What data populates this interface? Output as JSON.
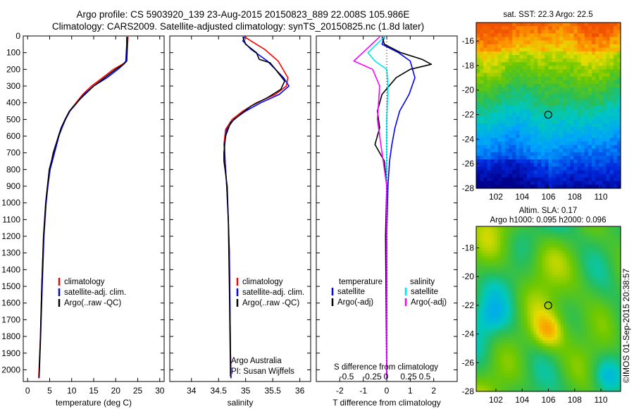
{
  "header": {
    "line1": "Argo profile: CS 5903920_139 23-Aug-2015 20150823_889 22.008S 105.986E",
    "line2": "Climatology: CARS2009. Satellite-adjusted climatology: synTS_20150825.nc (1.8d later)"
  },
  "colors": {
    "climatology": "#ff0000",
    "satellite": "#0000ff",
    "argo": "#000000",
    "satellite_salinity": "#00e5ee",
    "argo_salinity": "#ff00ff"
  },
  "credit": "©IMOS 01-Sep-2015 20:38:57",
  "chart_data": [
    {
      "id": "temperature",
      "type": "line",
      "xlabel": "temperature (deg C)",
      "ylabel": "",
      "xlim": [
        -1,
        31
      ],
      "ylim": [
        2070,
        0
      ],
      "xticks": [
        0,
        5,
        10,
        15,
        20,
        25,
        30
      ],
      "yticks": [
        0,
        100,
        200,
        300,
        400,
        500,
        600,
        700,
        800,
        900,
        1000,
        1100,
        1200,
        1300,
        1400,
        1500,
        1600,
        1700,
        1800,
        1900,
        2000
      ],
      "legend": [
        "climatology",
        "satellite-adj. clim.",
        "Argo(..raw -QC)"
      ],
      "series": [
        {
          "name": "climatology",
          "color": "#ff0000",
          "x": [
            22.8,
            22.7,
            22.5,
            21.5,
            19.5,
            17,
            14.5,
            12.5,
            11,
            9.5,
            8.5,
            7.7,
            7,
            6.5,
            6,
            5.5,
            5,
            4.5,
            4.1,
            3.6,
            3.2,
            2.9,
            2.5
          ],
          "y": [
            5,
            50,
            150,
            170,
            200,
            250,
            300,
            350,
            400,
            450,
            500,
            550,
            600,
            650,
            700,
            750,
            800,
            900,
            1000,
            1200,
            1500,
            1800,
            2050
          ]
        },
        {
          "name": "satellite-adj. clim.",
          "color": "#0000ff",
          "x": [
            22.5,
            22.5,
            22.3,
            21.8,
            20.5,
            18,
            15,
            12.8,
            11.2,
            9.6,
            8.6,
            7.8,
            7.1,
            6.6,
            6.1,
            5.6,
            5.1,
            4.6,
            4.2,
            3.7,
            3.3,
            2.95,
            2.6
          ],
          "y": [
            5,
            50,
            150,
            170,
            200,
            250,
            300,
            350,
            400,
            450,
            500,
            550,
            600,
            650,
            700,
            750,
            800,
            900,
            1000,
            1200,
            1500,
            1800,
            2050
          ]
        },
        {
          "name": "Argo(..raw -QC)",
          "color": "#000000",
          "x": [
            22.6,
            22.6,
            22.5,
            21.8,
            20,
            17.5,
            15,
            13,
            11.8,
            10.5,
            9.5,
            8.5,
            7.6,
            7,
            6.4,
            5.8,
            5.5,
            5.3,
            4.9,
            4.5,
            4.1,
            3.6,
            3.2,
            2.9,
            2.6
          ],
          "y": [
            5,
            50,
            150,
            170,
            200,
            250,
            300,
            350,
            380,
            420,
            450,
            500,
            550,
            600,
            650,
            700,
            740,
            760,
            800,
            900,
            1000,
            1200,
            1500,
            1800,
            2040
          ]
        }
      ]
    },
    {
      "id": "salinity",
      "type": "line",
      "xlabel": "salinity",
      "ylabel": "",
      "xlim": [
        33.6,
        36.2
      ],
      "ylim": [
        2070,
        0
      ],
      "xticks": [
        34,
        34.5,
        35,
        35.5,
        36
      ],
      "legend": [
        "climatology",
        "satellite-adj. clim.",
        "Argo(..raw -QC)"
      ],
      "annotation": [
        "Argo Australia",
        "PI: Susan Wijffels"
      ],
      "series": [
        {
          "name": "climatology",
          "color": "#ff0000",
          "x": [
            34.98,
            35.1,
            35.35,
            35.6,
            35.78,
            35.75,
            35.55,
            35.2,
            34.95,
            34.75,
            34.63,
            34.6,
            34.62,
            34.65,
            34.68,
            34.7,
            34.71,
            34.72,
            34.73
          ],
          "y": [
            5,
            30,
            80,
            150,
            250,
            300,
            350,
            400,
            450,
            500,
            560,
            650,
            750,
            900,
            1100,
            1300,
            1600,
            1900,
            2050
          ]
        },
        {
          "name": "satellite-adj. clim.",
          "color": "#0000ff",
          "x": [
            34.98,
            34.95,
            35.1,
            35.4,
            35.7,
            35.8,
            35.62,
            35.28,
            35,
            34.78,
            34.65,
            34.61,
            34.62,
            34.65,
            34.68,
            34.7,
            34.71,
            34.72,
            34.73
          ],
          "y": [
            5,
            30,
            80,
            150,
            250,
            300,
            350,
            400,
            450,
            500,
            560,
            650,
            750,
            900,
            1100,
            1300,
            1600,
            1900,
            2050
          ]
        },
        {
          "name": "Argo(..raw -QC)",
          "color": "#000000",
          "x": [
            34.95,
            35,
            35.2,
            35.25,
            35.45,
            35.55,
            35.6,
            35.72,
            35.65,
            35.4,
            35.1,
            34.9,
            34.72,
            34.63,
            34.6,
            34.6,
            34.62,
            34.66,
            34.68,
            34.7,
            34.72
          ],
          "y": [
            5,
            50,
            100,
            140,
            160,
            200,
            220,
            270,
            320,
            370,
            420,
            470,
            520,
            600,
            700,
            750,
            800,
            900,
            1100,
            1500,
            2040
          ]
        }
      ]
    },
    {
      "id": "difference",
      "type": "line",
      "xlabel": "T difference from climatology",
      "x2label": "S difference from climatology",
      "ylabel": "",
      "xlim": [
        -3,
        3
      ],
      "ylim": [
        2070,
        0
      ],
      "xticks": [
        -2,
        -1,
        0,
        1,
        2
      ],
      "x2ticks": [
        "-0.5",
        "-0.25",
        "0",
        "0.25",
        "0.5"
      ],
      "legend_temperature": {
        "title": "temperature",
        "items": [
          "satellite",
          "Argo(-adj)"
        ]
      },
      "legend_salinity": {
        "title": "salinity",
        "items": [
          "satellite",
          "Argo(-adj)"
        ]
      },
      "series": [
        {
          "name": "temperature satellite",
          "color": "#0000ff",
          "x": [
            -0.1,
            -0.2,
            0.5,
            1,
            1.2,
            0.95,
            0.55,
            0.35,
            0.22,
            0.12,
            0.05,
            0,
            0
          ],
          "y": [
            5,
            50,
            100,
            150,
            250,
            350,
            450,
            550,
            650,
            750,
            900,
            1200,
            2050
          ]
        },
        {
          "name": "temperature Argo(-adj)",
          "color": "#000000",
          "x": [
            -0.2,
            -0.1,
            0.6,
            1.5,
            1.9,
            1,
            0.4,
            -0.2,
            -0.4,
            -0.3,
            -0.5,
            -0.1,
            0,
            -0.05,
            0
          ],
          "y": [
            5,
            50,
            100,
            140,
            170,
            200,
            250,
            350,
            450,
            550,
            650,
            750,
            900,
            1200,
            2050
          ]
        },
        {
          "name": "salinity satellite",
          "color": "#00e5ee",
          "x": [
            -0.1,
            -0.8,
            -0.5,
            0,
            0.05,
            0,
            0,
            0
          ],
          "y": [
            5,
            100,
            150,
            200,
            300,
            500,
            1200,
            2050
          ]
        },
        {
          "name": "salinity Argo(-adj)",
          "color": "#ff00ff",
          "x": [
            -0.3,
            -1.4,
            -0.6,
            -0.3,
            -0.4,
            -0.2,
            0,
            0
          ],
          "y": [
            5,
            150,
            200,
            300,
            500,
            700,
            900,
            2050
          ]
        }
      ]
    },
    {
      "id": "sst_map",
      "type": "heatmap",
      "title": "sat. SST: 22.3 Argo: 22.5",
      "xlim": [
        100.5,
        111.5
      ],
      "ylim": [
        -28,
        -14.5
      ],
      "xticks": [
        102,
        104,
        106,
        108,
        110
      ],
      "yticks": [
        -28,
        -26,
        -24,
        -22,
        -20,
        -18,
        -16
      ],
      "marker": {
        "lon": 105.986,
        "lat": -22.008
      }
    },
    {
      "id": "sla_map",
      "type": "heatmap",
      "title": [
        "Altim. SLA: 0.17",
        "Argo h1000: 0.095 h2000: 0.096"
      ],
      "xlim": [
        100.5,
        111.5
      ],
      "ylim": [
        -28,
        -16.5
      ],
      "xticks": [
        102,
        104,
        106,
        108,
        110
      ],
      "yticks": [
        -28,
        -26,
        -24,
        -22,
        -20,
        -18
      ],
      "marker": {
        "lon": 105.986,
        "lat": -22.008
      }
    }
  ]
}
